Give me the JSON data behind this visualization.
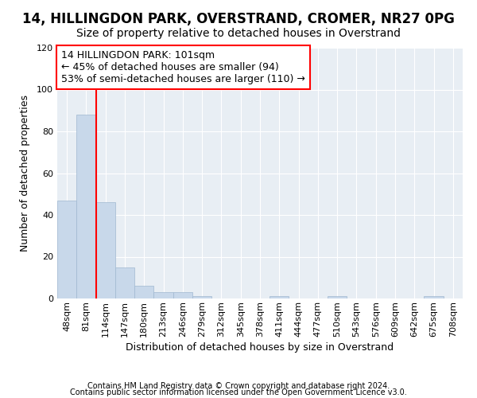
{
  "title1": "14, HILLINGDON PARK, OVERSTRAND, CROMER, NR27 0PG",
  "title2": "Size of property relative to detached houses in Overstrand",
  "xlabel": "Distribution of detached houses by size in Overstrand",
  "ylabel": "Number of detached properties",
  "bar_labels": [
    "48sqm",
    "81sqm",
    "114sqm",
    "147sqm",
    "180sqm",
    "213sqm",
    "246sqm",
    "279sqm",
    "312sqm",
    "345sqm",
    "378sqm",
    "411sqm",
    "444sqm",
    "477sqm",
    "510sqm",
    "543sqm",
    "576sqm",
    "609sqm",
    "642sqm",
    "675sqm",
    "708sqm"
  ],
  "bar_values": [
    47,
    88,
    46,
    15,
    6,
    3,
    3,
    1,
    0,
    0,
    0,
    1,
    0,
    0,
    1,
    0,
    0,
    0,
    0,
    1,
    0
  ],
  "bar_color": "#c8d8ea",
  "bar_edge_color": "#a0b8d0",
  "red_line_x": 1.5,
  "annotation_text": "14 HILLINGDON PARK: 101sqm\n← 45% of detached houses are smaller (94)\n53% of semi-detached houses are larger (110) →",
  "annotation_box_color": "white",
  "annotation_box_edge": "red",
  "ylim": [
    0,
    120
  ],
  "yticks": [
    0,
    20,
    40,
    60,
    80,
    100,
    120
  ],
  "footer1": "Contains HM Land Registry data © Crown copyright and database right 2024.",
  "footer2": "Contains public sector information licensed under the Open Government Licence v3.0.",
  "background_color": "#ffffff",
  "plot_bg_color": "#e8eef4",
  "grid_color": "#ffffff",
  "title1_fontsize": 12,
  "title2_fontsize": 10,
  "annotation_fontsize": 9,
  "footer_fontsize": 7,
  "axis_label_fontsize": 9,
  "tick_fontsize": 8
}
